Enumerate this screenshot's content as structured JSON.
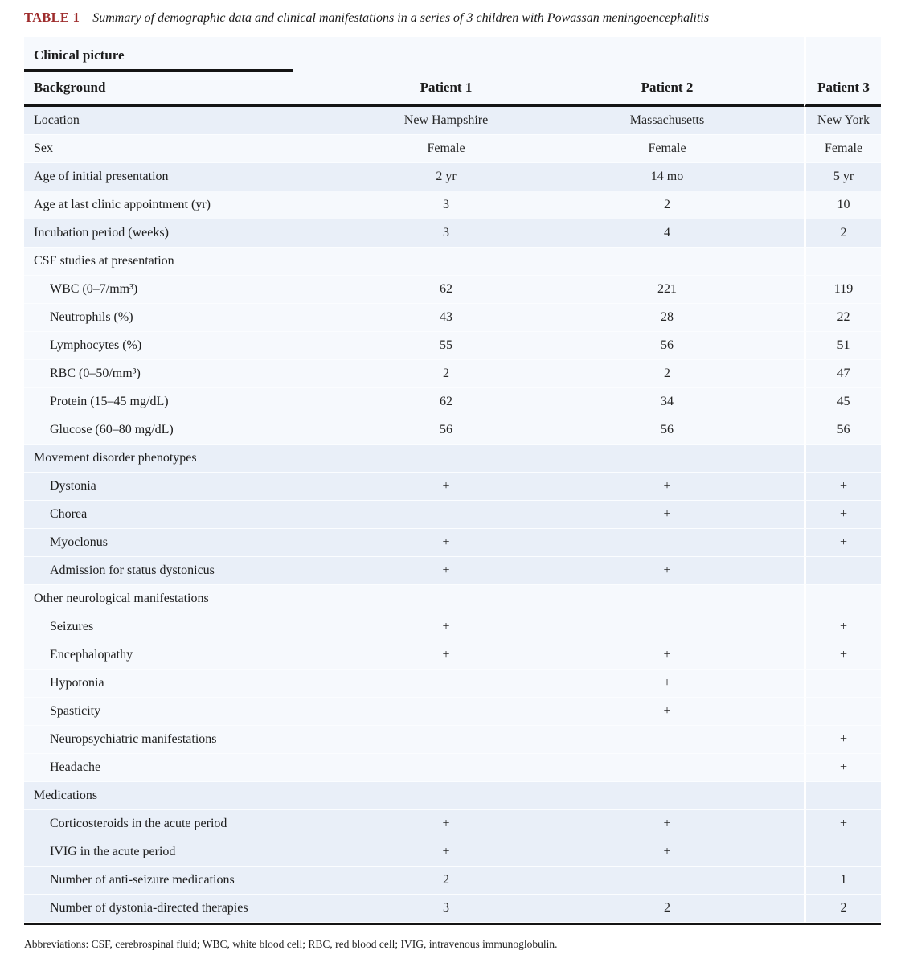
{
  "header": {
    "label": "TABLE 1",
    "caption": "Summary of demographic data and clinical manifestations in a series of 3 children with Powassan meningoencephalitis"
  },
  "group_header": "Clinical picture",
  "columns": [
    "Background",
    "Patient 1",
    "Patient 2",
    "Patient 3"
  ],
  "rows": [
    {
      "type": "row",
      "label": "Location",
      "values": [
        "New Hampshire",
        "Massachusetts",
        "New York"
      ]
    },
    {
      "type": "row",
      "label": "Sex",
      "values": [
        "Female",
        "Female",
        "Female"
      ]
    },
    {
      "type": "row",
      "label": "Age of initial presentation",
      "values": [
        "2 yr",
        "14 mo",
        "5 yr"
      ]
    },
    {
      "type": "row",
      "label": "Age at last clinic appointment (yr)",
      "values": [
        "3",
        "2",
        "10"
      ]
    },
    {
      "type": "row",
      "label": "Incubation period (weeks)",
      "values": [
        "3",
        "4",
        "2"
      ]
    },
    {
      "type": "section",
      "label": "CSF studies at presentation",
      "values": [
        "",
        "",
        ""
      ]
    },
    {
      "type": "sub",
      "label": "WBC (0–7/mm³)",
      "values": [
        "62",
        "221",
        "119"
      ]
    },
    {
      "type": "sub",
      "label": "Neutrophils (%)",
      "values": [
        "43",
        "28",
        "22"
      ]
    },
    {
      "type": "sub",
      "label": "Lymphocytes (%)",
      "values": [
        "55",
        "56",
        "51"
      ]
    },
    {
      "type": "sub",
      "label": "RBC (0–50/mm³)",
      "values": [
        "2",
        "2",
        "47"
      ]
    },
    {
      "type": "sub",
      "label": "Protein (15–45 mg/dL)",
      "values": [
        "62",
        "34",
        "45"
      ]
    },
    {
      "type": "sub",
      "label": "Glucose (60–80 mg/dL)",
      "values": [
        "56",
        "56",
        "56"
      ]
    },
    {
      "type": "section",
      "label": "Movement disorder phenotypes",
      "values": [
        "",
        "",
        ""
      ]
    },
    {
      "type": "sub",
      "label": "Dystonia",
      "values": [
        "+",
        "+",
        "+"
      ]
    },
    {
      "type": "sub",
      "label": "Chorea",
      "values": [
        "",
        "+",
        "+"
      ]
    },
    {
      "type": "sub",
      "label": "Myoclonus",
      "values": [
        "+",
        "",
        "+"
      ]
    },
    {
      "type": "sub",
      "label": "Admission for status dystonicus",
      "values": [
        "+",
        "+",
        ""
      ]
    },
    {
      "type": "section",
      "label": "Other neurological manifestations",
      "values": [
        "",
        "",
        ""
      ]
    },
    {
      "type": "sub",
      "label": "Seizures",
      "values": [
        "+",
        "",
        "+"
      ]
    },
    {
      "type": "sub",
      "label": "Encephalopathy",
      "values": [
        "+",
        "+",
        "+"
      ]
    },
    {
      "type": "sub",
      "label": "Hypotonia",
      "values": [
        "",
        "+",
        ""
      ]
    },
    {
      "type": "sub",
      "label": "Spasticity",
      "values": [
        "",
        "+",
        ""
      ]
    },
    {
      "type": "sub",
      "label": "Neuropsychiatric manifestations",
      "values": [
        "",
        "",
        "+"
      ]
    },
    {
      "type": "sub",
      "label": "Headache",
      "values": [
        "",
        "",
        "+"
      ]
    },
    {
      "type": "section",
      "label": "Medications",
      "values": [
        "",
        "",
        ""
      ]
    },
    {
      "type": "sub",
      "label": "Corticosteroids in the acute period",
      "values": [
        "+",
        "+",
        "+"
      ]
    },
    {
      "type": "sub",
      "label": "IVIG in the acute period",
      "values": [
        "+",
        "+",
        ""
      ]
    },
    {
      "type": "sub",
      "label": "Number of anti-seizure medications",
      "values": [
        "2",
        "",
        "1"
      ]
    },
    {
      "type": "sub",
      "label": "Number of dystonia-directed therapies",
      "values": [
        "3",
        "2",
        "2"
      ]
    }
  ],
  "footnote": "Abbreviations: CSF, cerebrospinal fluid; WBC, white blood cell; RBC, red blood cell; IVIG, intravenous immunoglobulin.",
  "colors": {
    "accent_red": "#9e2c2c",
    "stripe_blue": "#e9eff8",
    "table_base": "#f6f9fd",
    "rule_black": "#141414"
  }
}
